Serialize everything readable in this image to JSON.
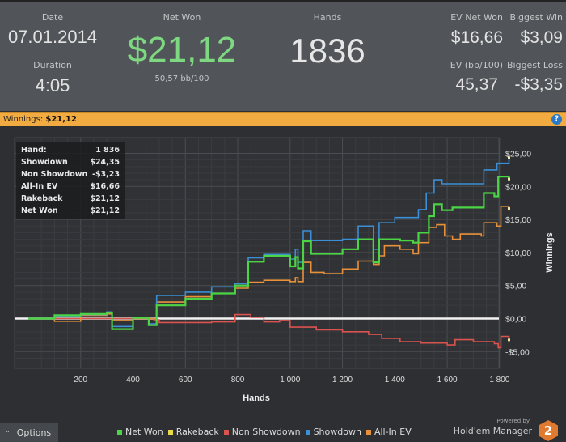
{
  "summary": {
    "date_label": "Date",
    "date": "07.01.2014",
    "duration_label": "Duration",
    "duration": "4:05",
    "net_won_label": "Net Won",
    "net_won": "$21,12",
    "bb100": "50,57 bb/100",
    "hands_label": "Hands",
    "hands": "1836",
    "ev_net_won_label": "EV Net Won",
    "ev_net_won": "$16,66",
    "biggest_win_label": "Biggest Win",
    "biggest_win": "$3,09",
    "ev_bb100_label": "EV (bb/100)",
    "ev_bb100": "45,37",
    "biggest_loss_label": "Biggest Loss",
    "biggest_loss": "-$3,35"
  },
  "banner": {
    "label": "Winnings:",
    "value": "$21,12",
    "help_icon": "?"
  },
  "tooltip": [
    {
      "k": "Hand:",
      "v": "1 836"
    },
    {
      "k": "Showdown",
      "v": "$24,35"
    },
    {
      "k": "Non Showdown",
      "v": "-$3,23"
    },
    {
      "k": "All-In EV",
      "v": "$16,66"
    },
    {
      "k": "Rakeback",
      "v": "$21,12"
    },
    {
      "k": "Net Won",
      "v": "$21,12"
    }
  ],
  "options_label": "Options",
  "powered_by": "Powered by",
  "brand": "Hold'em Manager",
  "brand_logo": "2",
  "chart_data": {
    "type": "line",
    "xlabel": "Hands",
    "ylabel": "Winnings",
    "xlim": [
      0,
      1850
    ],
    "ylim": [
      -6.2,
      26.5
    ],
    "xticks": [
      200,
      400,
      600,
      800,
      1000,
      1200,
      1400,
      1600,
      1800
    ],
    "xtick_labels": [
      "200",
      "400",
      "600",
      "800",
      "1 000",
      "1 200",
      "1 400",
      "1 600",
      "1 800"
    ],
    "yticks": [
      -5,
      0,
      5,
      10,
      15,
      20,
      25
    ],
    "ytick_labels": [
      "-$5,00",
      "$0,00",
      "$5,00",
      "$10,00",
      "$15,00",
      "$20,00",
      "$25,00"
    ],
    "grid": true,
    "series": [
      {
        "name": "Non Showdown",
        "color": "#d9534f",
        "points": [
          [
            0,
            0
          ],
          [
            480,
            -0.2
          ],
          [
            500,
            -0.6
          ],
          [
            700,
            -0.5
          ],
          [
            790,
            0.6
          ],
          [
            850,
            0.2
          ],
          [
            900,
            -0.5
          ],
          [
            960,
            -0.3
          ],
          [
            1000,
            -1.3
          ],
          [
            1100,
            -1.7
          ],
          [
            1200,
            -2.0
          ],
          [
            1300,
            -2.4
          ],
          [
            1350,
            -3.0
          ],
          [
            1420,
            -3.5
          ],
          [
            1500,
            -3.7
          ],
          [
            1600,
            -4.0
          ],
          [
            1630,
            -3.2
          ],
          [
            1700,
            -3.5
          ],
          [
            1780,
            -3.8
          ],
          [
            1795,
            -4.4
          ],
          [
            1805,
            -2.7
          ],
          [
            1836,
            -3.23
          ]
        ]
      },
      {
        "name": "All-In EV",
        "color": "#e8913a",
        "points": [
          [
            0,
            0
          ],
          [
            100,
            -0.4
          ],
          [
            200,
            0.5
          ],
          [
            300,
            0.7
          ],
          [
            320,
            -0.3
          ],
          [
            400,
            0
          ],
          [
            490,
            2.5
          ],
          [
            600,
            3.3
          ],
          [
            700,
            3.8
          ],
          [
            790,
            4.6
          ],
          [
            840,
            5.5
          ],
          [
            900,
            5.8
          ],
          [
            1000,
            5.6
          ],
          [
            1020,
            6.2
          ],
          [
            1030,
            5.6
          ],
          [
            1050,
            8.5
          ],
          [
            1080,
            7.0
          ],
          [
            1130,
            6.8
          ],
          [
            1200,
            7.5
          ],
          [
            1260,
            8.7
          ],
          [
            1318,
            8.2
          ],
          [
            1340,
            9.5
          ],
          [
            1360,
            11.0
          ],
          [
            1420,
            10.5
          ],
          [
            1470,
            9.8
          ],
          [
            1490,
            11.5
          ],
          [
            1530,
            13.8
          ],
          [
            1560,
            14.2
          ],
          [
            1590,
            12.5
          ],
          [
            1620,
            12.0
          ],
          [
            1650,
            12.8
          ],
          [
            1730,
            12.5
          ],
          [
            1740,
            14.5
          ],
          [
            1790,
            14.0
          ],
          [
            1805,
            17.0
          ],
          [
            1836,
            16.66
          ]
        ]
      },
      {
        "name": "Showdown",
        "color": "#3b8fd6",
        "points": [
          [
            0,
            0
          ],
          [
            100,
            0.4
          ],
          [
            200,
            0.6
          ],
          [
            300,
            1.0
          ],
          [
            320,
            -1.2
          ],
          [
            400,
            0.1
          ],
          [
            460,
            -0.8
          ],
          [
            490,
            3.5
          ],
          [
            600,
            4.0
          ],
          [
            700,
            4.8
          ],
          [
            790,
            5.3
          ],
          [
            840,
            9.2
          ],
          [
            900,
            9.7
          ],
          [
            1000,
            9.0
          ],
          [
            1020,
            10.5
          ],
          [
            1030,
            8.5
          ],
          [
            1050,
            13.3
          ],
          [
            1080,
            11.8
          ],
          [
            1200,
            12.0
          ],
          [
            1260,
            14.0
          ],
          [
            1318,
            10.5
          ],
          [
            1340,
            14.5
          ],
          [
            1400,
            15.3
          ],
          [
            1490,
            16.5
          ],
          [
            1520,
            19.0
          ],
          [
            1550,
            21.0
          ],
          [
            1580,
            20.4
          ],
          [
            1730,
            20.4
          ],
          [
            1740,
            22.5
          ],
          [
            1790,
            23.5
          ],
          [
            1836,
            24.35
          ]
        ]
      },
      {
        "name": "Rakeback",
        "color": "#e8d84a",
        "points": [
          [
            0,
            0
          ],
          [
            100,
            0.5
          ],
          [
            200,
            0.7
          ],
          [
            300,
            0.9
          ],
          [
            320,
            -1.6
          ],
          [
            400,
            0.1
          ],
          [
            460,
            -1.0
          ],
          [
            490,
            2.0
          ],
          [
            600,
            3.0
          ],
          [
            700,
            3.8
          ],
          [
            790,
            5.0
          ],
          [
            840,
            8.6
          ],
          [
            900,
            9.5
          ],
          [
            1000,
            7.9
          ],
          [
            1020,
            9.3
          ],
          [
            1030,
            7.6
          ],
          [
            1050,
            11.7
          ],
          [
            1080,
            9.8
          ],
          [
            1200,
            10.5
          ],
          [
            1260,
            12.0
          ],
          [
            1318,
            8.5
          ],
          [
            1340,
            12.0
          ],
          [
            1420,
            11.8
          ],
          [
            1470,
            11.5
          ],
          [
            1490,
            13.0
          ],
          [
            1530,
            15.5
          ],
          [
            1550,
            17.3
          ],
          [
            1580,
            16.4
          ],
          [
            1620,
            16.8
          ],
          [
            1730,
            16.8
          ],
          [
            1740,
            19.0
          ],
          [
            1780,
            18.5
          ],
          [
            1795,
            21.5
          ],
          [
            1836,
            21.12
          ]
        ]
      },
      {
        "name": "Net Won",
        "color": "#4bd444",
        "points": [
          [
            0,
            0
          ],
          [
            100,
            0.5
          ],
          [
            200,
            0.7
          ],
          [
            300,
            0.9
          ],
          [
            320,
            -1.6
          ],
          [
            400,
            0.1
          ],
          [
            460,
            -1.0
          ],
          [
            490,
            2.0
          ],
          [
            600,
            3.0
          ],
          [
            700,
            3.8
          ],
          [
            790,
            5.0
          ],
          [
            840,
            8.6
          ],
          [
            900,
            9.5
          ],
          [
            1000,
            7.9
          ],
          [
            1020,
            9.3
          ],
          [
            1030,
            7.6
          ],
          [
            1050,
            11.7
          ],
          [
            1080,
            9.8
          ],
          [
            1200,
            10.5
          ],
          [
            1260,
            12.0
          ],
          [
            1318,
            8.5
          ],
          [
            1340,
            12.0
          ],
          [
            1420,
            11.8
          ],
          [
            1470,
            11.5
          ],
          [
            1490,
            13.0
          ],
          [
            1530,
            15.5
          ],
          [
            1550,
            17.3
          ],
          [
            1580,
            16.4
          ],
          [
            1620,
            16.8
          ],
          [
            1730,
            16.8
          ],
          [
            1740,
            19.0
          ],
          [
            1780,
            18.5
          ],
          [
            1795,
            21.5
          ],
          [
            1836,
            21.12
          ]
        ]
      }
    ],
    "legend": [
      "Net Won",
      "Rakeback",
      "Non Showdown",
      "Showdown",
      "All-In EV"
    ],
    "legend_colors": [
      "#4bd444",
      "#e8d84a",
      "#d9534f",
      "#3b8fd6",
      "#e8913a"
    ],
    "legend_placement": "bottom"
  }
}
